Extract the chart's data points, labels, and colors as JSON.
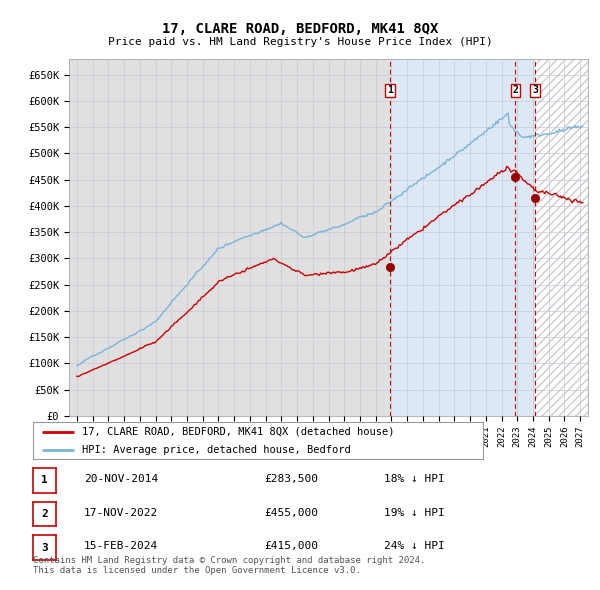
{
  "title": "17, CLARE ROAD, BEDFORD, MK41 8QX",
  "subtitle": "Price paid vs. HM Land Registry's House Price Index (HPI)",
  "hpi_label": "HPI: Average price, detached house, Bedford",
  "property_label": "17, CLARE ROAD, BEDFORD, MK41 8QX (detached house)",
  "hpi_color": "#7ab4d8",
  "property_color": "#cc0000",
  "bg_color_left": "#e8e8e8",
  "bg_color_right": "#ddeaf5",
  "transaction_color": "#cc0000",
  "marker_color": "#990000",
  "vline_color": "#cc0000",
  "grid_color": "#c8c8d8",
  "transactions": [
    {
      "label": "1",
      "date": "20-NOV-2014",
      "price": 283500,
      "x": 2014.89,
      "pct": "18% ↓ HPI"
    },
    {
      "label": "2",
      "date": "17-NOV-2022",
      "price": 455000,
      "x": 2022.89,
      "pct": "19% ↓ HPI"
    },
    {
      "label": "3",
      "date": "15-FEB-2024",
      "price": 415000,
      "x": 2024.12,
      "pct": "24% ↓ HPI"
    }
  ],
  "ylim": [
    0,
    680000
  ],
  "xlim": [
    1994.5,
    2027.5
  ],
  "yticks": [
    0,
    50000,
    100000,
    150000,
    200000,
    250000,
    300000,
    350000,
    400000,
    450000,
    500000,
    550000,
    600000,
    650000
  ],
  "ytick_labels": [
    "£0",
    "£50K",
    "£100K",
    "£150K",
    "£200K",
    "£250K",
    "£300K",
    "£350K",
    "£400K",
    "£450K",
    "£500K",
    "£550K",
    "£600K",
    "£650K"
  ],
  "footer": "Contains HM Land Registry data © Crown copyright and database right 2024.\nThis data is licensed under the Open Government Licence v3.0.",
  "hatch_start": 2024.12,
  "shade_start": 2014.89
}
